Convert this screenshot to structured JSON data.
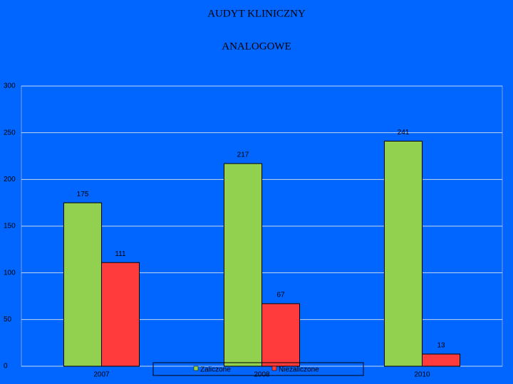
{
  "chart_data": {
    "type": "bar",
    "title": "AUDYT KLINICZNY",
    "subtitle": "ANALOGOWE",
    "categories": [
      "2007",
      "2008",
      "2010"
    ],
    "series": [
      {
        "name": "Zaliczone",
        "color": "#92d050",
        "values": [
          175,
          217,
          241
        ]
      },
      {
        "name": "Niezaliczone",
        "color": "#ff3b3b",
        "values": [
          111,
          67,
          13
        ]
      }
    ],
    "ylim": [
      0,
      300
    ],
    "yticks": [
      0,
      50,
      100,
      150,
      200,
      250,
      300
    ],
    "grid": true,
    "legend": "bottom"
  }
}
